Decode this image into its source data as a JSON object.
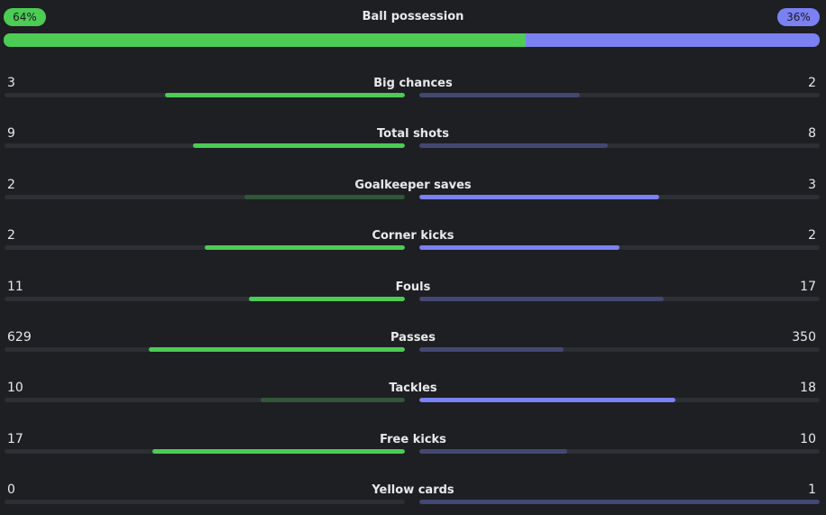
{
  "colors": {
    "home": "#4ccc55",
    "away": "#7b80f2",
    "home_dim": "#33553a",
    "away_dim": "#434873",
    "track": "#2c2f33"
  },
  "possession": {
    "label": "Ball possession",
    "home": "64%",
    "away": "36%",
    "home_share": 0.64
  },
  "stats": [
    {
      "label": "Big chances",
      "home": "3",
      "away": "2",
      "home_share": 0.6,
      "away_share": 0.4,
      "winner": "home"
    },
    {
      "label": "Total shots",
      "home": "9",
      "away": "8",
      "home_share": 0.53,
      "away_share": 0.47,
      "winner": "home"
    },
    {
      "label": "Goalkeeper saves",
      "home": "2",
      "away": "3",
      "home_share": 0.4,
      "away_share": 0.6,
      "winner": "away"
    },
    {
      "label": "Corner kicks",
      "home": "2",
      "away": "2",
      "home_share": 0.5,
      "away_share": 0.5,
      "winner": "both"
    },
    {
      "label": "Fouls",
      "home": "11",
      "away": "17",
      "home_share": 0.39,
      "away_share": 0.61,
      "winner": "home"
    },
    {
      "label": "Passes",
      "home": "629",
      "away": "350",
      "home_share": 0.64,
      "away_share": 0.36,
      "winner": "home"
    },
    {
      "label": "Tackles",
      "home": "10",
      "away": "18",
      "home_share": 0.36,
      "away_share": 0.64,
      "winner": "away"
    },
    {
      "label": "Free kicks",
      "home": "17",
      "away": "10",
      "home_share": 0.63,
      "away_share": 0.37,
      "winner": "home"
    },
    {
      "label": "Yellow cards",
      "home": "0",
      "away": "1",
      "home_share": 0.0,
      "away_share": 1.0,
      "winner": "home"
    }
  ]
}
